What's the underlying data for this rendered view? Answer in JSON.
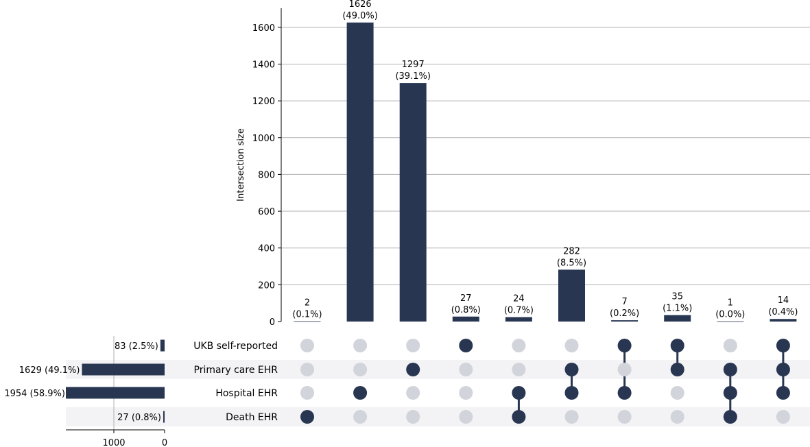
{
  "chart_data": {
    "type": "upset",
    "ylabel": "Intersection size",
    "ylim": [
      0,
      1700
    ],
    "yticks": [
      0,
      200,
      400,
      600,
      800,
      1000,
      1200,
      1400,
      1600
    ],
    "grid": true,
    "colors": {
      "bar": "#283651",
      "inactive_dot": "#d1d4da",
      "shade": "#f3f3f5",
      "grid": "#b0b0b0"
    },
    "sets": [
      {
        "name": "UKB self-reported",
        "size": 83,
        "label": "83 (2.5%)"
      },
      {
        "name": "Primary care EHR",
        "size": 1629,
        "label": "1629 (49.1%)"
      },
      {
        "name": "Hospital EHR",
        "size": 1954,
        "label": "1954 (58.9%)"
      },
      {
        "name": "Death EHR",
        "size": 27,
        "label": "27 (0.8%)"
      }
    ],
    "set_size_ticks": [
      1000,
      0
    ],
    "set_size_xlim": [
      2180,
      0
    ],
    "intersections": [
      {
        "value": 2,
        "count_label": "2",
        "pct_label": "(0.1%)",
        "members": [
          false,
          false,
          false,
          true
        ]
      },
      {
        "value": 1626,
        "count_label": "1626",
        "pct_label": "(49.0%)",
        "members": [
          false,
          false,
          true,
          false
        ]
      },
      {
        "value": 1297,
        "count_label": "1297",
        "pct_label": "(39.1%)",
        "members": [
          false,
          true,
          false,
          false
        ]
      },
      {
        "value": 27,
        "count_label": "27",
        "pct_label": "(0.8%)",
        "members": [
          true,
          false,
          false,
          false
        ]
      },
      {
        "value": 24,
        "count_label": "24",
        "pct_label": "(0.7%)",
        "members": [
          false,
          false,
          true,
          true
        ]
      },
      {
        "value": 282,
        "count_label": "282",
        "pct_label": "(8.5%)",
        "members": [
          false,
          true,
          true,
          false
        ]
      },
      {
        "value": 7,
        "count_label": "7",
        "pct_label": "(0.2%)",
        "members": [
          true,
          false,
          true,
          false
        ]
      },
      {
        "value": 35,
        "count_label": "35",
        "pct_label": "(1.1%)",
        "members": [
          true,
          true,
          false,
          false
        ]
      },
      {
        "value": 1,
        "count_label": "1",
        "pct_label": "(0.0%)",
        "members": [
          false,
          true,
          true,
          true
        ]
      },
      {
        "value": 14,
        "count_label": "14",
        "pct_label": "(0.4%)",
        "members": [
          true,
          true,
          true,
          false
        ]
      }
    ]
  }
}
